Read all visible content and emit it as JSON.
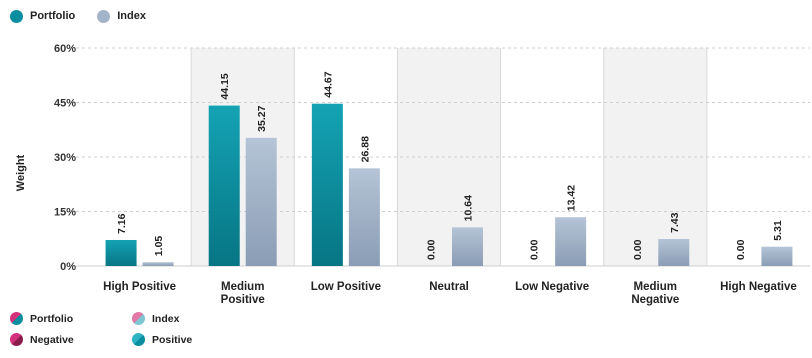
{
  "legend_top": [
    {
      "label": "Portfolio",
      "color": "#0a8ea0"
    },
    {
      "label": "Index",
      "color": "#a3b4c8"
    }
  ],
  "legend_bottom": [
    {
      "label": "Portfolio",
      "color_a": "#d4317c",
      "color_b": "#0a8ea0"
    },
    {
      "label": "Index",
      "color_a": "#e27aa8",
      "color_b": "#7fc6d3"
    },
    {
      "label": "Negative",
      "color_a": "#d4317c",
      "color_b": "#8a1d4e"
    },
    {
      "label": "Positive",
      "color_a": "#2fb3c4",
      "color_b": "#0a8ea0"
    }
  ],
  "chart_data": {
    "type": "bar",
    "ylabel": "Weight",
    "xlabel": "",
    "ylim": [
      0,
      60
    ],
    "yticks": [
      "0%",
      "15%",
      "30%",
      "45%",
      "60%"
    ],
    "ytick_values": [
      0,
      15,
      30,
      45,
      60
    ],
    "categories": [
      "High Positive",
      "Medium Positive",
      "Low Positive",
      "Neutral",
      "Low Negative",
      "Medium Negative",
      "High Negative"
    ],
    "shaded_categories": [
      1,
      3,
      5
    ],
    "series": [
      {
        "name": "Portfolio",
        "color": "#0a8ea0",
        "values": [
          7.16,
          44.15,
          44.67,
          0.0,
          0.0,
          0.0,
          0.0
        ],
        "labels": [
          "7.16",
          "44.15",
          "44.67",
          "0.00",
          "0.00",
          "0.00",
          "0.00"
        ]
      },
      {
        "name": "Index",
        "color": "#a3b4c8",
        "values": [
          1.05,
          35.27,
          26.88,
          10.64,
          13.42,
          7.43,
          5.31
        ],
        "labels": [
          "1.05",
          "35.27",
          "26.88",
          "10.64",
          "13.42",
          "7.43",
          "5.31"
        ]
      }
    ]
  }
}
